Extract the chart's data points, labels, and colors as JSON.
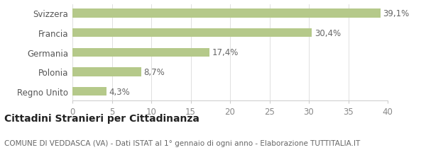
{
  "categories": [
    "Regno Unito",
    "Polonia",
    "Germania",
    "Francia",
    "Svizzera"
  ],
  "values": [
    4.3,
    8.7,
    17.4,
    30.4,
    39.1
  ],
  "labels": [
    "4,3%",
    "8,7%",
    "17,4%",
    "30,4%",
    "39,1%"
  ],
  "bar_color": "#b5c98a",
  "background_color": "#ffffff",
  "xlim": [
    0,
    40
  ],
  "xticks": [
    0,
    5,
    10,
    15,
    20,
    25,
    30,
    35,
    40
  ],
  "title_main": "Cittadini Stranieri per Cittadinanza",
  "title_sub": "COMUNE DI VEDDASCA (VA) - Dati ISTAT al 1° gennaio di ogni anno - Elaborazione TUTTITALIA.IT",
  "title_main_fontsize": 10,
  "title_sub_fontsize": 7.5,
  "label_fontsize": 8.5,
  "tick_fontsize": 8.5,
  "bar_height": 0.45
}
